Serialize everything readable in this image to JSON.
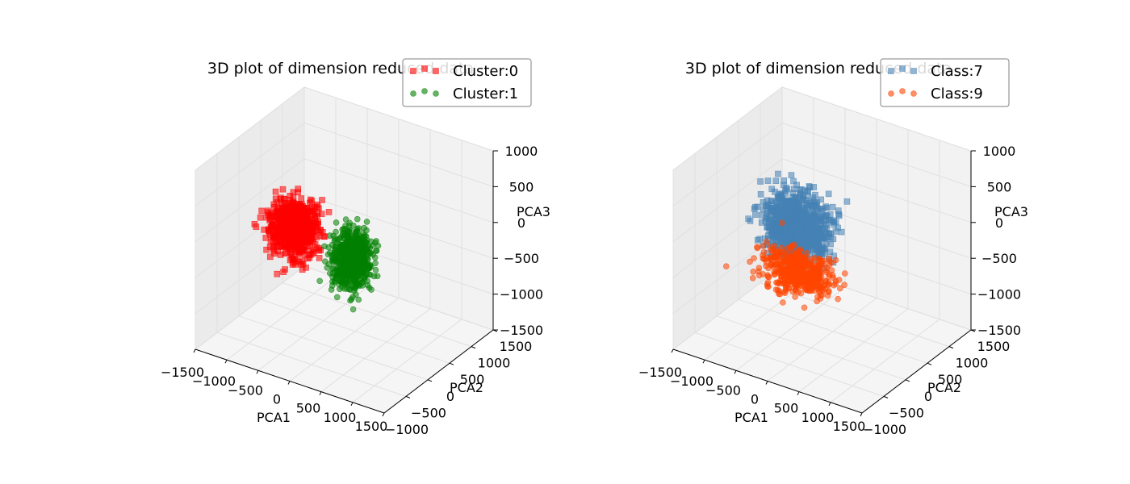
{
  "chart_data": [
    {
      "type": "scatter",
      "projection": "3d",
      "title": "3D plot of dimension reduced data",
      "xlabel": "PCA1",
      "ylabel": "PCA2",
      "zlabel": "PCA3",
      "xlim": [
        -1500,
        1500
      ],
      "ylim": [
        -1000,
        1500
      ],
      "zlim": [
        -1500,
        1000
      ],
      "xticks": [
        "−1500",
        "−1000",
        "−500",
        "0",
        "500",
        "1000",
        "1500"
      ],
      "yticks": [
        "−500",
        "0",
        "500",
        "1000",
        "1500"
      ],
      "yticks_extra": [
        "−1000"
      ],
      "zticks": [
        "1000",
        "500",
        "0",
        "−500",
        "−1000",
        "−1500"
      ],
      "grid": true,
      "legend_position": "top-right",
      "series": [
        {
          "name": "Cluster:0",
          "marker": "square",
          "color": "#ff0000",
          "n_points": 700,
          "center": [
            -750,
            200,
            -150
          ],
          "spread": [
            320,
            250,
            330
          ]
        },
        {
          "name": "Cluster:1",
          "marker": "circle",
          "color": "#008000",
          "n_points": 700,
          "center": [
            150,
            200,
            -300
          ],
          "spread": [
            220,
            230,
            330
          ]
        }
      ]
    },
    {
      "type": "scatter",
      "projection": "3d",
      "title": "3D plot of dimension reduced data",
      "xlabel": "PCA1",
      "ylabel": "PCA2",
      "zlabel": "PCA3",
      "xlim": [
        -1500,
        1500
      ],
      "ylim": [
        -1000,
        1500
      ],
      "zlim": [
        -1500,
        1000
      ],
      "xticks": [
        "−1500",
        "−1000",
        "−500",
        "0",
        "500",
        "1000",
        "1500"
      ],
      "yticks": [
        "−500",
        "0",
        "500",
        "1000",
        "1500"
      ],
      "yticks_extra": [
        "−1000"
      ],
      "zticks": [
        "1000",
        "500",
        "0",
        "−500",
        "−1000",
        "−1500"
      ],
      "grid": true,
      "legend_position": "top-right",
      "series": [
        {
          "name": "Class:7",
          "marker": "square",
          "color": "#4682b4",
          "n_points": 900,
          "center": [
            -350,
            200,
            0
          ],
          "spread": [
            450,
            250,
            380
          ]
        },
        {
          "name": "Class:9",
          "marker": "circle",
          "color": "#ff4500",
          "n_points": 500,
          "center": [
            -350,
            200,
            -650
          ],
          "spread": [
            450,
            250,
            230
          ]
        }
      ]
    }
  ]
}
